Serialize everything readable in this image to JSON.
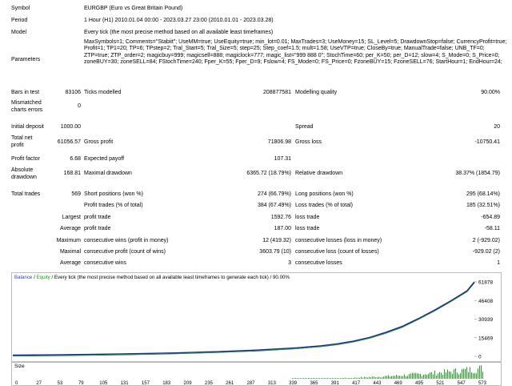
{
  "header": {
    "symbol_label": "Symbol",
    "symbol_value": "EURGBP (Euro vs Great Britain Pound)",
    "period_label": "Period",
    "period_value": "1 Hour (H1) 2010.01.04 00:00 - 2023.03.27 23:00 (2010.01.01 - 2023.03.28)",
    "model_label": "Model",
    "model_value": "Every tick (the most precise method based on all available least timeframes)",
    "parameters_label": "Parameters",
    "parameters_value": "MaxSymbols=1; Comments=\"Stabiit\"; UseMM=true; UseEquity=true; min_lot=0.01; MaxTrades=3; UseMoney=15; SL_Level=5; DrawdownStop=false; CurrencyProfit=true; Profit=1; TP1=20; TP=6; TPstep=2; Tral_Start=5; Tral_Size=5; step=25; Step_coef=1.5; mult=1.58; UseVTP=true; CloseBy=true; ManualTrade=false; UNB_TF=0; ZTP=true; ZTP_order=2; magicbuy=999; magicsell=888; magiclock=777; magic_list=\"999 888 0\"; StochTime=60; per_K=50; per_D=12; slow=4; S_Mode=0; S_Price=0; zoneBUY=30; zoneSELL=84; FStochTime=240; Fper_K=55; Fper_D=9; Fslow=4; FS_Mode=0; FS_Price=0; FzoneBUY=15; FzoneSELL=76; StartHour=1; EndHour=24;"
  },
  "stats": {
    "bars_label": "Bars in test",
    "bars_value": "83106",
    "ticks_label": "Ticks modelled",
    "ticks_value": "208877581",
    "quality_label": "Modelling quality",
    "quality_value": "90.00%",
    "mismatch_label_1": "Mismatched",
    "mismatch_label_2": "charts errors",
    "mismatch_value": "0",
    "deposit_label": "Initial deposit",
    "deposit_value": "1000.00",
    "spread_label": "Spread",
    "spread_value": "20",
    "netprofit_label_1": "Total net",
    "netprofit_label_2": "profit",
    "netprofit_value": "61056.57",
    "grossprofit_label": "Gross profit",
    "grossprofit_value": "71806.98",
    "grossloss_label": "Gross loss",
    "grossloss_value": "-10750.41",
    "pf_label": "Profit factor",
    "pf_value": "6.68",
    "payoff_label": "Expected payoff",
    "payoff_value": "107.31",
    "absdd_label_1": "Absolute",
    "absdd_label_2": "drawdown",
    "absdd_value": "168.81",
    "maxdd_label": "Maximal drawdown",
    "maxdd_value": "6365.72 (18.79%)",
    "reldd_label": "Relative drawdown",
    "reldd_value": "38.37% (1854.79)",
    "trades_label": "Total trades",
    "trades_value": "569",
    "short_label": "Short positions (won %)",
    "short_value": "274 (66.79%)",
    "long_label": "Long positions (won %)",
    "long_value": "295 (68.14%)",
    "profittrades_label": "Profit trades (% of total)",
    "profittrades_value": "384 (67.49%)",
    "losstrades_label": "Loss trades (% of total)",
    "losstrades_value": "185 (32.51%)",
    "largest_label": "Largest",
    "largest_pt_label": "profit trade",
    "largest_pt_value": "1592.76",
    "largest_lt_label": "loss trade",
    "largest_lt_value": "-654.89",
    "average_label": "Average",
    "average_pt_label": "profit trade",
    "average_pt_value": "187.00",
    "average_lt_label": "loss trade",
    "average_lt_value": "-58.11",
    "maximum_label": "Maximum",
    "maxwins_label": "consecutive wins (profit in money)",
    "maxwins_value": "12 (419.32)",
    "maxlosses_label": "consecutive losses (loss in money)",
    "maxlosses_value": "2 (-929.02)",
    "maximal_label": "Maximal",
    "maxprofit_label": "consecutive profit (count of wins)",
    "maxprofit_value": "3603.79 (10)",
    "maxloss_label": "consecutive loss (count of losses)",
    "maxloss_value": "-929.02 (2)",
    "average2_label": "Average",
    "avgwins_label": "consecutive wins",
    "avgwins_value": "3",
    "avglosses_label": "consecutive losses",
    "avglosses_value": "1"
  },
  "chart_legend": {
    "balance": "Balance",
    "sep": " / ",
    "equity": "Equity",
    "rest": " / Every tick (the most precise method based on all available least timeframes to generate each tick) / 90.00%"
  },
  "colors": {
    "balance": "#1f1f9e",
    "equity": "#1aa01a",
    "size_bars": "#1ea81e",
    "legend_balance": "#3b3bd6"
  },
  "chart_data": {
    "type": "line",
    "ylim": [
      0,
      61878
    ],
    "y_ticks": [
      "61878",
      "46408",
      "30939",
      "15469",
      "0"
    ],
    "x_ticks": [
      "0",
      "27",
      "53",
      "79",
      "105",
      "131",
      "157",
      "183",
      "209",
      "235",
      "261",
      "287",
      "313",
      "339",
      "365",
      "391",
      "417",
      "443",
      "469",
      "495",
      "521",
      "547",
      "573"
    ],
    "series": [
      {
        "x": [
          0,
          50,
          100,
          150,
          200,
          250,
          300,
          350,
          380,
          400,
          420,
          440,
          460,
          480,
          500,
          520,
          540,
          560,
          569
        ],
        "values": [
          1000,
          1300,
          1700,
          2200,
          2900,
          3900,
          5200,
          7100,
          8800,
          10400,
          12700,
          15800,
          20000,
          24900,
          31400,
          38500,
          46200,
          54500,
          61878
        ]
      }
    ]
  },
  "size_panel": {
    "label": "Size"
  }
}
